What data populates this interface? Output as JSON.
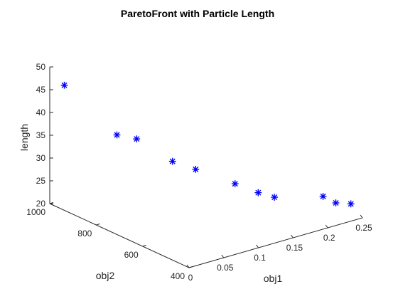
{
  "chart_data": {
    "type": "scatter",
    "title": "ParetoFront with Particle Length",
    "xlabel": "obj1",
    "ylabel": "obj2",
    "zlabel": "length",
    "xlim": [
      0,
      0.25
    ],
    "ylim": [
      400,
      1000
    ],
    "zlim": [
      20,
      50
    ],
    "xticks": [
      "0",
      "0.05",
      "0.1",
      "0.15",
      "0.2",
      "0.25"
    ],
    "yticks": [
      "400",
      "600",
      "800",
      "1000"
    ],
    "zticks": [
      "20",
      "25",
      "30",
      "35",
      "40",
      "45",
      "50"
    ],
    "grid": false,
    "marker": "*",
    "color": "#0000ff",
    "series": [
      {
        "points": [
          {
            "x": 0.011,
            "y": 970,
            "z": 46.2
          },
          {
            "x": 0.055,
            "y": 875,
            "z": 35.6
          },
          {
            "x": 0.07,
            "y": 835,
            "z": 35.0
          },
          {
            "x": 0.1,
            "y": 770,
            "z": 30.3
          },
          {
            "x": 0.12,
            "y": 730,
            "z": 28.6
          },
          {
            "x": 0.15,
            "y": 650,
            "z": 26.0
          },
          {
            "x": 0.17,
            "y": 610,
            "z": 24.1
          },
          {
            "x": 0.18,
            "y": 570,
            "z": 23.6
          },
          {
            "x": 0.23,
            "y": 510,
            "z": 23.0
          },
          {
            "x": 0.235,
            "y": 470,
            "z": 22.3
          },
          {
            "x": 0.25,
            "y": 450,
            "z": 21.9
          }
        ]
      }
    ]
  }
}
